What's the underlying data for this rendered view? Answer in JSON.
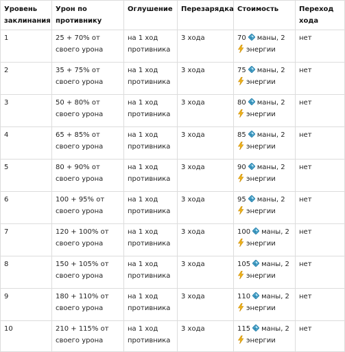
{
  "header": {
    "level": "Уровень заклинания",
    "damage": "Урон по противнику",
    "stun": "Оглушение",
    "cooldown": "Перезарядка",
    "cost": "Стоимость",
    "transfer": "Переход хода"
  },
  "icons": {
    "mana": "mana-crystal-icon",
    "energy": "lightning-bolt-icon"
  },
  "colors": {
    "mana": "#4aa3c9",
    "energy": "#f0b418",
    "border": "#dcdcdc"
  },
  "rows": [
    {
      "level": "1",
      "damage": "25 + 70% от своего урона",
      "stun": "на 1 ход противника",
      "cooldown": "3 хода",
      "mana": "70",
      "mana_suffix": "маны, 2",
      "energy": "энергии",
      "transfer": "нет"
    },
    {
      "level": "2",
      "damage": "35 + 75% от своего урона",
      "stun": "на 1 ход противника",
      "cooldown": "3 хода",
      "mana": "75",
      "mana_suffix": "маны, 2",
      "energy": "энергии",
      "transfer": "нет"
    },
    {
      "level": "3",
      "damage": "50 + 80% от своего урона",
      "stun": "на 1 ход противника",
      "cooldown": "3 хода",
      "mana": "80",
      "mana_suffix": "маны, 2",
      "energy": "энергии",
      "transfer": "нет"
    },
    {
      "level": "4",
      "damage": "65 + 85% от своего урона",
      "stun": "на 1 ход противника",
      "cooldown": "3 хода",
      "mana": "85",
      "mana_suffix": "маны, 2",
      "energy": "энергии",
      "transfer": "нет"
    },
    {
      "level": "5",
      "damage": "80 + 90% от своего урона",
      "stun": "на 1 ход противника",
      "cooldown": "3 хода",
      "mana": "90",
      "mana_suffix": "маны, 2",
      "energy": "энергии",
      "transfer": "нет"
    },
    {
      "level": "6",
      "damage": "100 + 95% от своего урона",
      "stun": "на 1 ход противника",
      "cooldown": "3 хода",
      "mana": "95",
      "mana_suffix": "маны, 2",
      "energy": "энергии",
      "transfer": "нет"
    },
    {
      "level": "7",
      "damage": "120 + 100% от своего урона",
      "stun": "на 1 ход противника",
      "cooldown": "3 хода",
      "mana": "100",
      "mana_suffix": "маны, 2",
      "energy": "энергии",
      "transfer": "нет"
    },
    {
      "level": "8",
      "damage": "150 + 105% от своего урона",
      "stun": "на 1 ход противника",
      "cooldown": "3 хода",
      "mana": "105",
      "mana_suffix": "маны, 2",
      "energy": "энергии",
      "transfer": "нет"
    },
    {
      "level": "9",
      "damage": "180 + 110% от своего урона",
      "stun": "на 1 ход противника",
      "cooldown": "3 хода",
      "mana": "110",
      "mana_suffix": "маны, 2",
      "energy": "энергии",
      "transfer": "нет"
    },
    {
      "level": "10",
      "damage": "210 + 115% от своего урона",
      "stun": "на 1 ход противника",
      "cooldown": "3 хода",
      "mana": "115",
      "mana_suffix": "маны, 2",
      "energy": "энергии",
      "transfer": "нет"
    }
  ]
}
